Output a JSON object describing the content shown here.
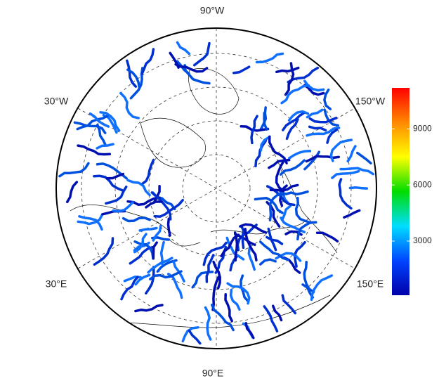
{
  "map": {
    "longitude_labels": [
      "90°W",
      "30°W",
      "150°W",
      "30°E",
      "150°E",
      "90°E"
    ],
    "colorbar": {
      "range": [
        100,
        11200
      ],
      "ticks": [
        3000,
        6000,
        9000
      ],
      "colors": [
        "#0000aa",
        "#0044ff",
        "#00ddff",
        "#00dd00",
        "#ffff00",
        "#ff8800",
        "#ff0000"
      ]
    }
  }
}
